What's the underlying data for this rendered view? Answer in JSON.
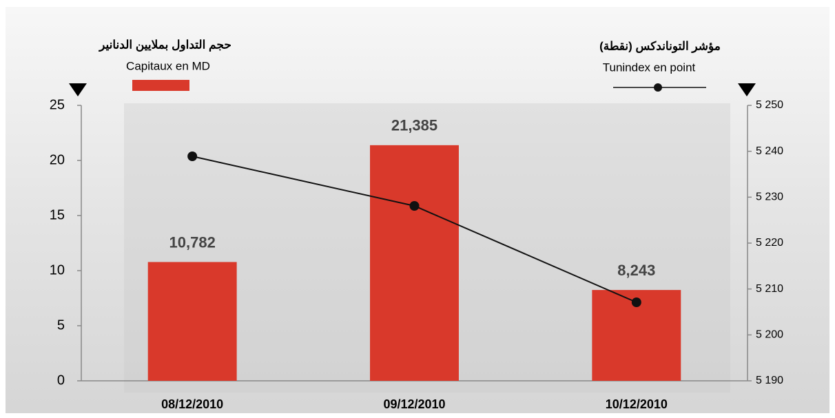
{
  "chart_data": {
    "type": "bar",
    "categories": [
      "08/12/2010",
      "09/12/2010",
      "10/12/2010"
    ],
    "series": [
      {
        "name": "Capitaux en MD",
        "name_ar": "حجم التداول بملايين الدنانير",
        "type": "bar",
        "color": "#d9392b",
        "values": [
          10.782,
          21.385,
          8.243
        ],
        "value_labels": [
          "10,782",
          "21,385",
          "8,243"
        ]
      },
      {
        "name": "Tunindex en point",
        "name_ar": "مؤشر التوناندكس (نقطة)",
        "type": "line",
        "axis": "y2",
        "color": "#111111",
        "values": [
          5238.9,
          5228.1,
          5207.1
        ]
      }
    ],
    "ylim": [
      0,
      25
    ],
    "yticks": [
      0,
      5,
      10,
      15,
      20,
      25
    ],
    "y2lim": [
      5190,
      5250
    ],
    "y2ticks": [
      {
        "value": 5190,
        "label": "5 190"
      },
      {
        "value": 5200,
        "label": "5 200"
      },
      {
        "value": 5210,
        "label": "5 210"
      },
      {
        "value": 5220,
        "label": "5 220"
      },
      {
        "value": 5230,
        "label": "5 230"
      },
      {
        "value": 5240,
        "label": "5 240"
      },
      {
        "value": 5250,
        "label": "5 250"
      }
    ],
    "grid": false
  }
}
